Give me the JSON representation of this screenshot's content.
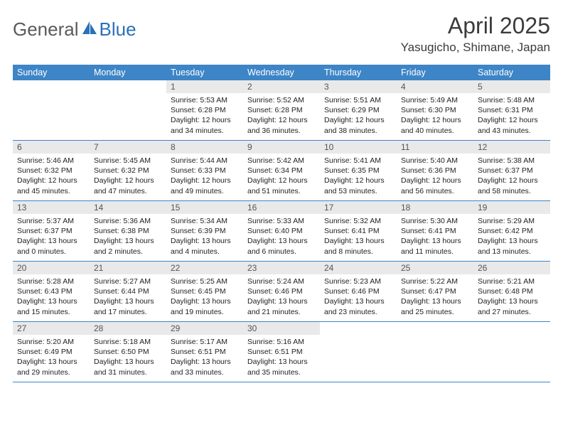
{
  "logo": {
    "text1": "General",
    "text2": "Blue"
  },
  "title": "April 2025",
  "location": "Yasugicho, Shimane, Japan",
  "colors": {
    "header_bg": "#3d85c6",
    "header_text": "#ffffff",
    "daynum_bg": "#e9e9e9",
    "rule": "#3d85c6",
    "logo_accent": "#2a71b8"
  },
  "weekdays": [
    "Sunday",
    "Monday",
    "Tuesday",
    "Wednesday",
    "Thursday",
    "Friday",
    "Saturday"
  ],
  "weeks": [
    [
      {
        "day": null
      },
      {
        "day": null
      },
      {
        "day": "1",
        "sunrise": "Sunrise: 5:53 AM",
        "sunset": "Sunset: 6:28 PM",
        "daylight1": "Daylight: 12 hours",
        "daylight2": "and 34 minutes."
      },
      {
        "day": "2",
        "sunrise": "Sunrise: 5:52 AM",
        "sunset": "Sunset: 6:28 PM",
        "daylight1": "Daylight: 12 hours",
        "daylight2": "and 36 minutes."
      },
      {
        "day": "3",
        "sunrise": "Sunrise: 5:51 AM",
        "sunset": "Sunset: 6:29 PM",
        "daylight1": "Daylight: 12 hours",
        "daylight2": "and 38 minutes."
      },
      {
        "day": "4",
        "sunrise": "Sunrise: 5:49 AM",
        "sunset": "Sunset: 6:30 PM",
        "daylight1": "Daylight: 12 hours",
        "daylight2": "and 40 minutes."
      },
      {
        "day": "5",
        "sunrise": "Sunrise: 5:48 AM",
        "sunset": "Sunset: 6:31 PM",
        "daylight1": "Daylight: 12 hours",
        "daylight2": "and 43 minutes."
      }
    ],
    [
      {
        "day": "6",
        "sunrise": "Sunrise: 5:46 AM",
        "sunset": "Sunset: 6:32 PM",
        "daylight1": "Daylight: 12 hours",
        "daylight2": "and 45 minutes."
      },
      {
        "day": "7",
        "sunrise": "Sunrise: 5:45 AM",
        "sunset": "Sunset: 6:32 PM",
        "daylight1": "Daylight: 12 hours",
        "daylight2": "and 47 minutes."
      },
      {
        "day": "8",
        "sunrise": "Sunrise: 5:44 AM",
        "sunset": "Sunset: 6:33 PM",
        "daylight1": "Daylight: 12 hours",
        "daylight2": "and 49 minutes."
      },
      {
        "day": "9",
        "sunrise": "Sunrise: 5:42 AM",
        "sunset": "Sunset: 6:34 PM",
        "daylight1": "Daylight: 12 hours",
        "daylight2": "and 51 minutes."
      },
      {
        "day": "10",
        "sunrise": "Sunrise: 5:41 AM",
        "sunset": "Sunset: 6:35 PM",
        "daylight1": "Daylight: 12 hours",
        "daylight2": "and 53 minutes."
      },
      {
        "day": "11",
        "sunrise": "Sunrise: 5:40 AM",
        "sunset": "Sunset: 6:36 PM",
        "daylight1": "Daylight: 12 hours",
        "daylight2": "and 56 minutes."
      },
      {
        "day": "12",
        "sunrise": "Sunrise: 5:38 AM",
        "sunset": "Sunset: 6:37 PM",
        "daylight1": "Daylight: 12 hours",
        "daylight2": "and 58 minutes."
      }
    ],
    [
      {
        "day": "13",
        "sunrise": "Sunrise: 5:37 AM",
        "sunset": "Sunset: 6:37 PM",
        "daylight1": "Daylight: 13 hours",
        "daylight2": "and 0 minutes."
      },
      {
        "day": "14",
        "sunrise": "Sunrise: 5:36 AM",
        "sunset": "Sunset: 6:38 PM",
        "daylight1": "Daylight: 13 hours",
        "daylight2": "and 2 minutes."
      },
      {
        "day": "15",
        "sunrise": "Sunrise: 5:34 AM",
        "sunset": "Sunset: 6:39 PM",
        "daylight1": "Daylight: 13 hours",
        "daylight2": "and 4 minutes."
      },
      {
        "day": "16",
        "sunrise": "Sunrise: 5:33 AM",
        "sunset": "Sunset: 6:40 PM",
        "daylight1": "Daylight: 13 hours",
        "daylight2": "and 6 minutes."
      },
      {
        "day": "17",
        "sunrise": "Sunrise: 5:32 AM",
        "sunset": "Sunset: 6:41 PM",
        "daylight1": "Daylight: 13 hours",
        "daylight2": "and 8 minutes."
      },
      {
        "day": "18",
        "sunrise": "Sunrise: 5:30 AM",
        "sunset": "Sunset: 6:41 PM",
        "daylight1": "Daylight: 13 hours",
        "daylight2": "and 11 minutes."
      },
      {
        "day": "19",
        "sunrise": "Sunrise: 5:29 AM",
        "sunset": "Sunset: 6:42 PM",
        "daylight1": "Daylight: 13 hours",
        "daylight2": "and 13 minutes."
      }
    ],
    [
      {
        "day": "20",
        "sunrise": "Sunrise: 5:28 AM",
        "sunset": "Sunset: 6:43 PM",
        "daylight1": "Daylight: 13 hours",
        "daylight2": "and 15 minutes."
      },
      {
        "day": "21",
        "sunrise": "Sunrise: 5:27 AM",
        "sunset": "Sunset: 6:44 PM",
        "daylight1": "Daylight: 13 hours",
        "daylight2": "and 17 minutes."
      },
      {
        "day": "22",
        "sunrise": "Sunrise: 5:25 AM",
        "sunset": "Sunset: 6:45 PM",
        "daylight1": "Daylight: 13 hours",
        "daylight2": "and 19 minutes."
      },
      {
        "day": "23",
        "sunrise": "Sunrise: 5:24 AM",
        "sunset": "Sunset: 6:46 PM",
        "daylight1": "Daylight: 13 hours",
        "daylight2": "and 21 minutes."
      },
      {
        "day": "24",
        "sunrise": "Sunrise: 5:23 AM",
        "sunset": "Sunset: 6:46 PM",
        "daylight1": "Daylight: 13 hours",
        "daylight2": "and 23 minutes."
      },
      {
        "day": "25",
        "sunrise": "Sunrise: 5:22 AM",
        "sunset": "Sunset: 6:47 PM",
        "daylight1": "Daylight: 13 hours",
        "daylight2": "and 25 minutes."
      },
      {
        "day": "26",
        "sunrise": "Sunrise: 5:21 AM",
        "sunset": "Sunset: 6:48 PM",
        "daylight1": "Daylight: 13 hours",
        "daylight2": "and 27 minutes."
      }
    ],
    [
      {
        "day": "27",
        "sunrise": "Sunrise: 5:20 AM",
        "sunset": "Sunset: 6:49 PM",
        "daylight1": "Daylight: 13 hours",
        "daylight2": "and 29 minutes."
      },
      {
        "day": "28",
        "sunrise": "Sunrise: 5:18 AM",
        "sunset": "Sunset: 6:50 PM",
        "daylight1": "Daylight: 13 hours",
        "daylight2": "and 31 minutes."
      },
      {
        "day": "29",
        "sunrise": "Sunrise: 5:17 AM",
        "sunset": "Sunset: 6:51 PM",
        "daylight1": "Daylight: 13 hours",
        "daylight2": "and 33 minutes."
      },
      {
        "day": "30",
        "sunrise": "Sunrise: 5:16 AM",
        "sunset": "Sunset: 6:51 PM",
        "daylight1": "Daylight: 13 hours",
        "daylight2": "and 35 minutes."
      },
      {
        "day": null
      },
      {
        "day": null
      },
      {
        "day": null
      }
    ]
  ]
}
